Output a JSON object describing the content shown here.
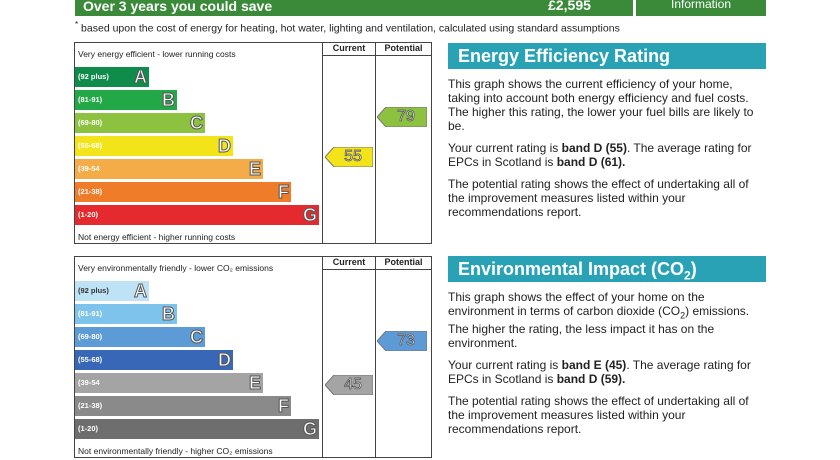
{
  "banner": {
    "savings_text": "Over 3 years you could save",
    "cost": "£2,595",
    "info": "Information"
  },
  "footnote": "based upon the cost of energy for heating, hot water, lighting and ventilation, calculated using standard assumptions",
  "energy_chart": {
    "top_note": "Very energy efficient - lower running costs",
    "bottom_note": "Not energy efficient - higher running costs",
    "current_header": "Current",
    "potential_header": "Potential",
    "bands": [
      {
        "range": "(92 plus)",
        "letter": "A",
        "color": "#0f8c4a"
      },
      {
        "range": "(81-91)",
        "letter": "B",
        "color": "#22a847"
      },
      {
        "range": "(69-80)",
        "letter": "C",
        "color": "#8cc23f"
      },
      {
        "range": "(55-68)",
        "letter": "D",
        "color": "#f2e418"
      },
      {
        "range": "(39-54",
        "letter": "E",
        "color": "#f4ac48"
      },
      {
        "range": "(21-38)",
        "letter": "F",
        "color": "#ef7c29"
      },
      {
        "range": "(1-20)",
        "letter": "G",
        "color": "#e52a2f"
      }
    ],
    "current_value": "55",
    "potential_value": "79",
    "current_color": "#f2e418",
    "potential_color": "#8cc23f"
  },
  "env_chart": {
    "top_note": "Very environmentally friendly - lower CO₂ emissions",
    "bottom_note": "Not environmentally friendly - higher CO₂ emissions",
    "current_header": "Current",
    "potential_header": "Potential",
    "bands": [
      {
        "range": "(92 plus)",
        "letter": "A",
        "color": "#bfe3f6"
      },
      {
        "range": "(81-91)",
        "letter": "B",
        "color": "#7ec3ec"
      },
      {
        "range": "(69-80)",
        "letter": "C",
        "color": "#5c9bd5"
      },
      {
        "range": "(55-68)",
        "letter": "D",
        "color": "#3867b7"
      },
      {
        "range": "(39-54",
        "letter": "E",
        "color": "#a4a4a4"
      },
      {
        "range": "(21-38)",
        "letter": "F",
        "color": "#8a8a8a"
      },
      {
        "range": "(1-20)",
        "letter": "G",
        "color": "#6e6e6e"
      }
    ],
    "current_value": "45",
    "potential_value": "73",
    "current_color": "#a4a4a4",
    "potential_color": "#5c9bd5"
  },
  "energy_info": {
    "title": "Energy Efficiency Rating",
    "para1": "This graph shows the current efficiency of your home, taking into account both energy efficiency and fuel costs. The higher this rating, the lower your fuel bills are likely to be.",
    "p2_a": "Your current rating is ",
    "p2_b": "band D (55)",
    "p2_c": ". The average rating for EPCs in Scotland is ",
    "p2_d": "band D (61).",
    "para3": "The potential rating shows the effect of undertaking all of the improvement measures listed within your recommendations report."
  },
  "env_info": {
    "title_a": "Environmental Impact (CO",
    "title_sub": "2",
    "title_b": ") Rating",
    "p1_a": "This graph shows the effect of your home on the environment in terms of carbon dioxide (CO",
    "p1_sub": "2",
    "p1_b": ") emissions. The higher the rating, the less impact it has on the environment.",
    "p2_a": "Your current rating is ",
    "p2_b": "band E (45)",
    "p2_c": ". The average rating for EPCs in Scotland is ",
    "p2_d": "band D (59).",
    "para3": "The potential rating shows the effect of undertaking all of the improvement measures listed within your recommendations report."
  }
}
